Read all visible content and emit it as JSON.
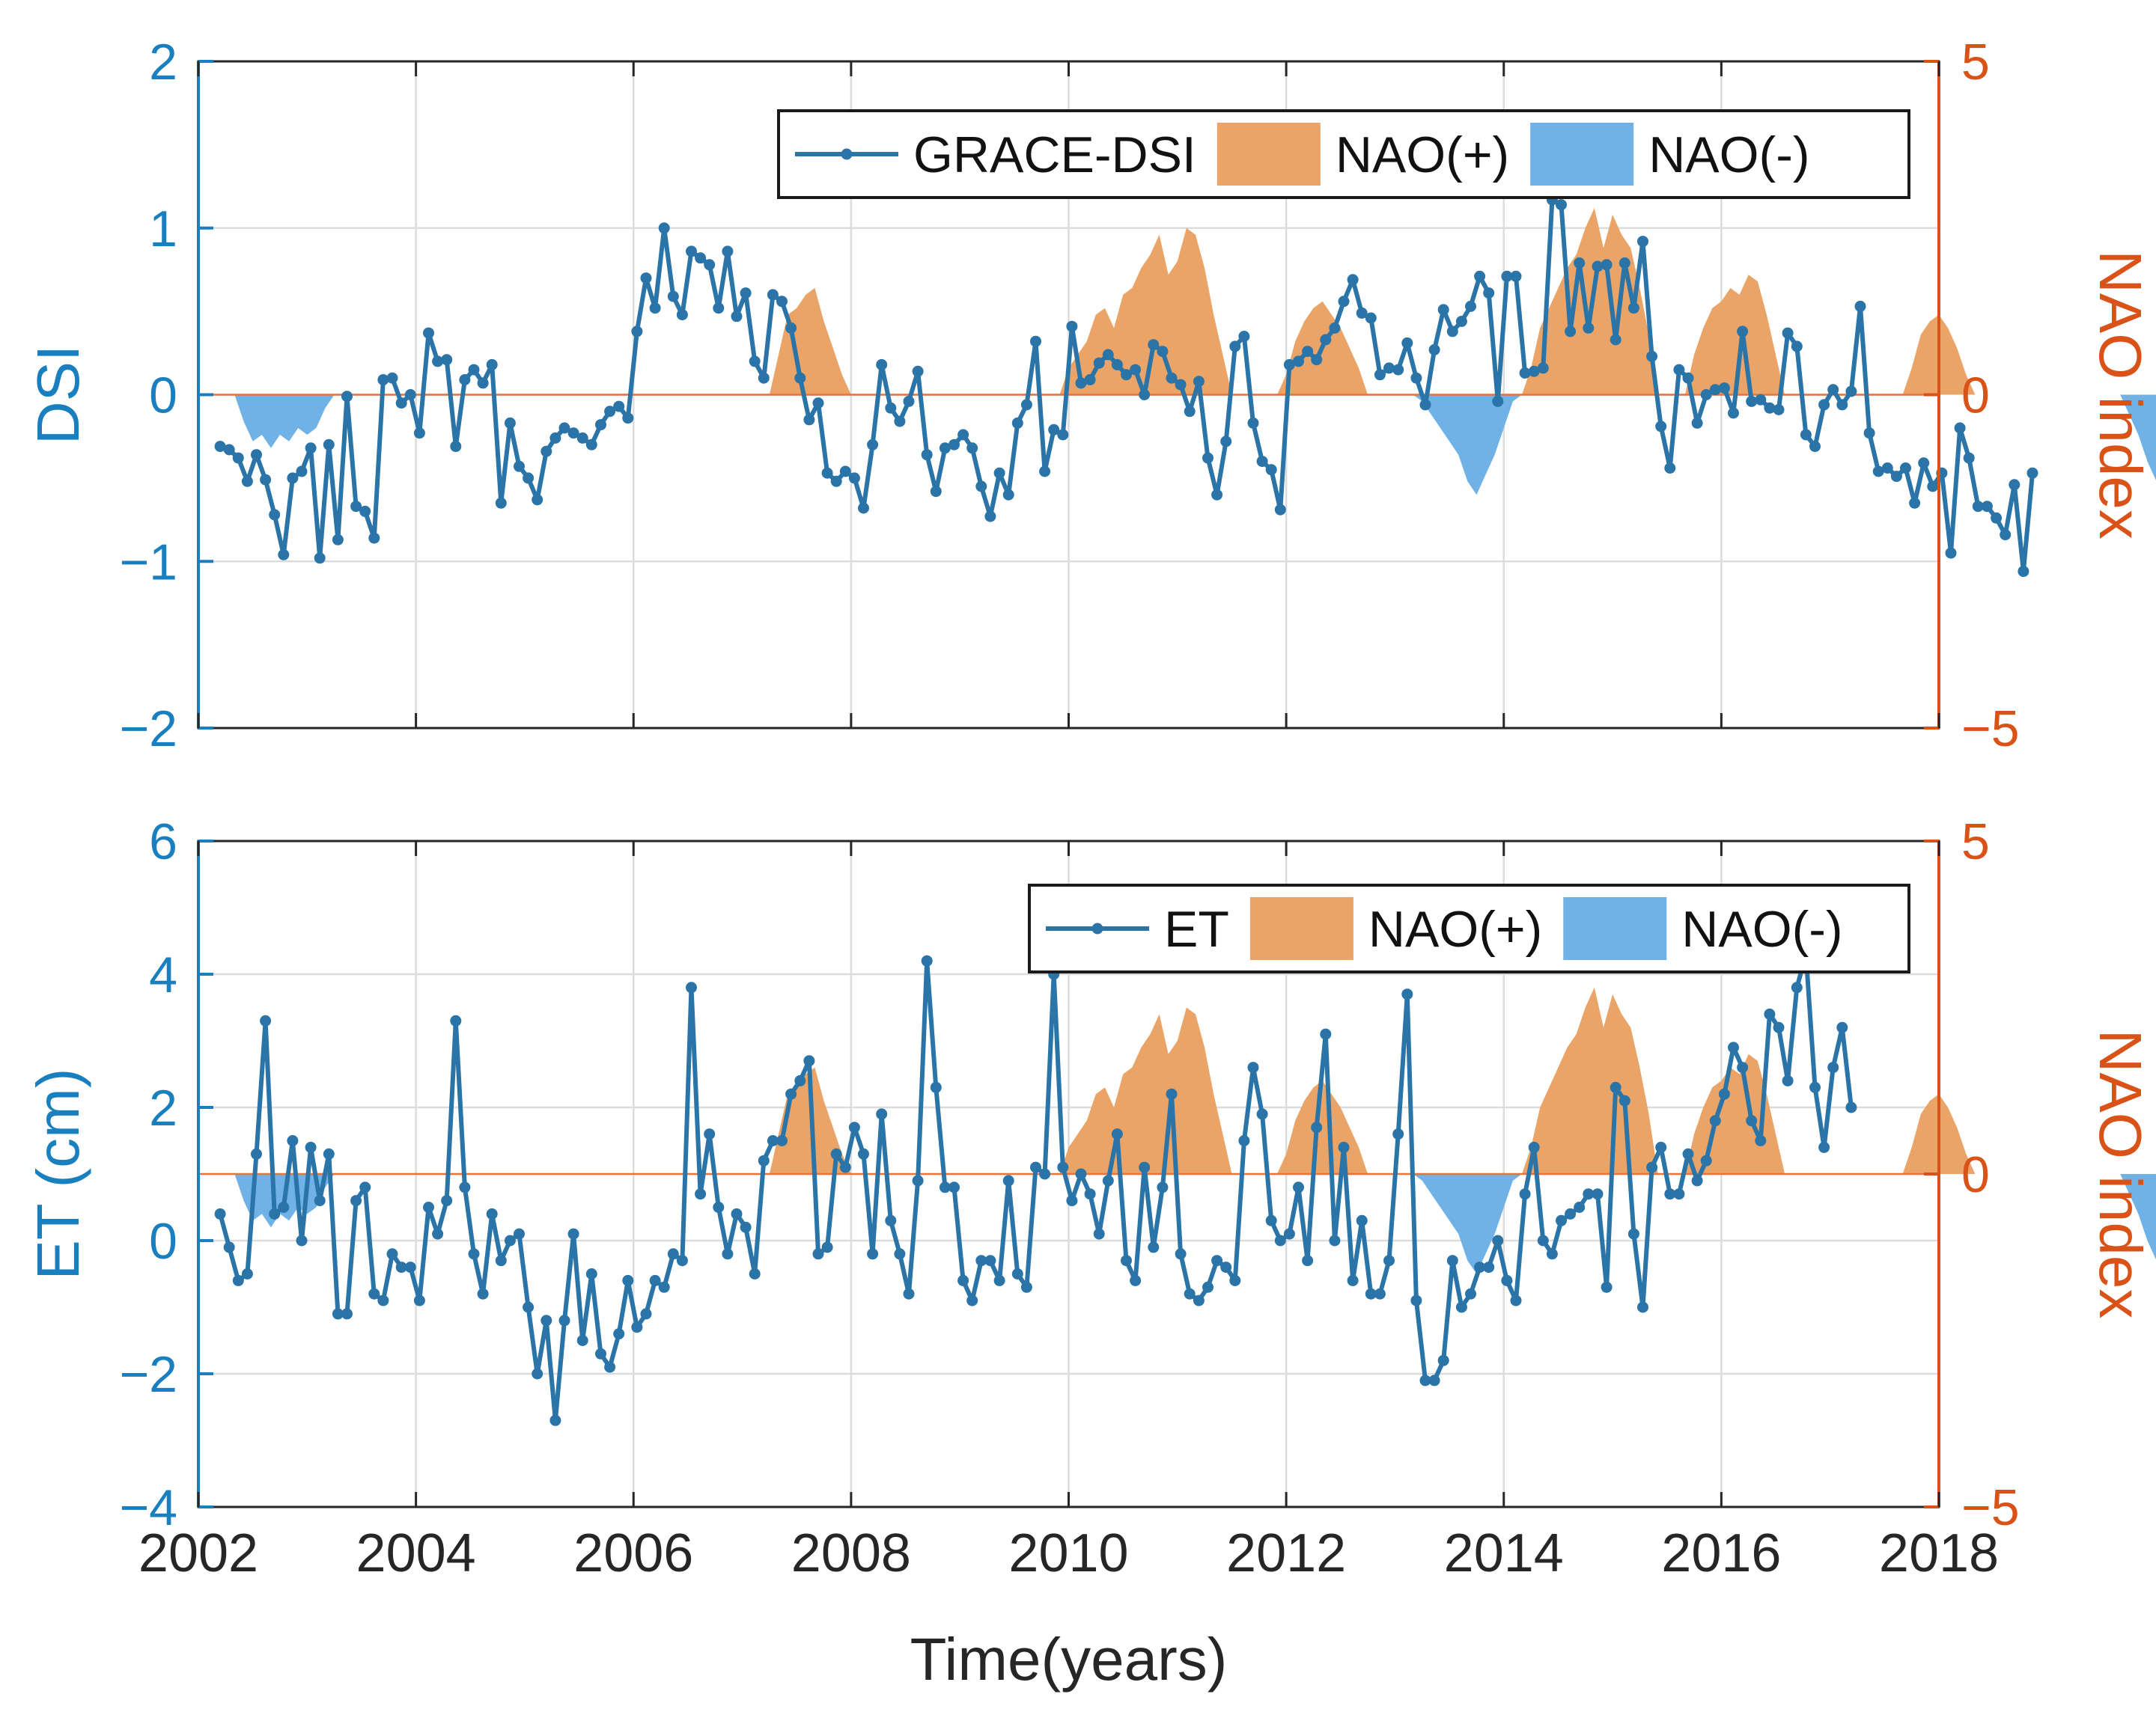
{
  "colors": {
    "series": "#2a74a8",
    "nao_pos": "#eba467",
    "nao_neg": "#70b2e6",
    "left_axis": "#1a7fbf",
    "right_axis": "#d95319",
    "grid": "#dcdcdc",
    "frame": "#262626",
    "zero_line": "#e8733a"
  },
  "x_axis": {
    "label": "Time(years)",
    "range": [
      2002,
      2018
    ],
    "ticks": [
      2002,
      2004,
      2006,
      2008,
      2010,
      2012,
      2014,
      2016,
      2018
    ],
    "tick_labels": [
      "2002",
      "2004",
      "2006",
      "2008",
      "2010",
      "2012",
      "2014",
      "2016",
      "2018"
    ]
  },
  "nao": {
    "months_per_point": 1,
    "start": 2002.25,
    "values": [
      -0.0,
      -0.0,
      -0.4,
      -0.7,
      -0.6,
      -0.8,
      -0.6,
      -0.7,
      -0.5,
      -0.6,
      -0.5,
      -0.2,
      0.0,
      0.0,
      0.0,
      0.0,
      0.0,
      0.0,
      0.0,
      0.0,
      0.0,
      0.0,
      0.0,
      0.0,
      0.0,
      0.0,
      0.0,
      0.0,
      0.0,
      0.0,
      0.0,
      0.0,
      0.0,
      0.0,
      0.0,
      0.0,
      0.0,
      0.0,
      0.0,
      0.0,
      0.0,
      0.0,
      0.0,
      0.0,
      0.0,
      0.0,
      0.0,
      0.0,
      0.0,
      0.0,
      0.0,
      0.0,
      0.0,
      0.0,
      0.0,
      0.0,
      0.0,
      0.0,
      0.0,
      0.0,
      0.0,
      0.6,
      1.2,
      1.3,
      1.5,
      1.6,
      1.1,
      0.7,
      0.3,
      0.0,
      0.0,
      0.0,
      0.0,
      0.0,
      0.0,
      0.0,
      0.0,
      0.0,
      0.0,
      0.0,
      0.0,
      0.0,
      0.0,
      0.0,
      0.0,
      0.0,
      0.0,
      0.0,
      0.0,
      0.0,
      0.0,
      0.0,
      0.0,
      0.4,
      0.6,
      0.8,
      1.2,
      1.3,
      1.0,
      1.5,
      1.6,
      1.9,
      2.1,
      2.4,
      1.8,
      2.0,
      2.5,
      2.4,
      1.9,
      1.2,
      0.6,
      0.0,
      0.0,
      0.0,
      0.0,
      0.0,
      0.0,
      0.3,
      0.8,
      1.1,
      1.3,
      1.4,
      1.2,
      1.0,
      0.7,
      0.4,
      0.0,
      0.0,
      0.0,
      0.0,
      0.0,
      0.0,
      -0.1,
      -0.3,
      -0.5,
      -0.7,
      -0.9,
      -1.3,
      -1.5,
      -1.2,
      -0.9,
      -0.5,
      -0.1,
      0.0,
      0.4,
      1.0,
      1.3,
      1.6,
      1.9,
      2.1,
      2.5,
      2.8,
      2.2,
      2.7,
      2.4,
      2.2,
      1.6,
      0.9,
      0.0,
      0.0,
      0.0,
      0.0,
      0.6,
      1.0,
      1.3,
      1.4,
      1.6,
      1.5,
      1.8,
      1.7,
      1.2,
      0.6,
      0.0,
      0.0,
      0.0,
      0.0,
      0.0,
      0.0,
      0.0,
      0.0,
      0.0,
      0.0,
      0.0,
      0.0,
      0.0,
      0.0,
      0.4,
      0.9,
      1.1,
      1.2,
      1.0,
      0.7,
      0.3,
      0.0,
      0.0,
      0.0,
      0.0,
      0.0,
      0.0,
      0.0,
      0.0,
      0.0,
      0.0,
      0.0,
      0.0,
      0.0,
      0.0,
      0.0,
      0.0,
      0.0,
      -0.3,
      -0.6,
      -1.0,
      -1.3,
      -1.6,
      -1.9,
      -1.9,
      -2.0,
      -2.2,
      -2.3,
      -2.1,
      -2.5,
      -2.8,
      -2.3,
      -2.1,
      -1.5,
      -0.8,
      -0.2,
      0.0,
      0.0
    ]
  },
  "panel_top": {
    "ylabel_left": "DSI",
    "ylabel_right": "NAO index",
    "y_left": {
      "range": [
        -2,
        2
      ],
      "ticks": [
        -2,
        -1,
        0,
        1,
        2
      ],
      "tick_labels": [
        "−2",
        "−1",
        "0",
        "1",
        "2"
      ]
    },
    "y_right": {
      "range": [
        -5,
        5
      ],
      "ticks": [
        -5,
        0,
        5
      ],
      "tick_labels": [
        "−5",
        "0",
        "5"
      ]
    },
    "legend": {
      "series": "GRACE-DSI",
      "pos": "NAO(+)",
      "neg": "NAO(-)"
    }
  },
  "panel_bottom": {
    "ylabel_left": "ET (cm)",
    "ylabel_right": "NAO index",
    "y_left": {
      "range": [
        -4,
        6
      ],
      "ticks": [
        -4,
        -2,
        0,
        2,
        4,
        6
      ],
      "tick_labels": [
        "−4",
        "−2",
        "0",
        "2",
        "4",
        "6"
      ]
    },
    "y_right": {
      "range": [
        -5,
        5
      ],
      "ticks": [
        -5,
        0,
        5
      ],
      "tick_labels": [
        "−5",
        "0",
        "5"
      ]
    },
    "legend": {
      "series": "ET",
      "pos": "NAO(+)",
      "neg": "NAO(-)"
    }
  },
  "chart_data": [
    {
      "type": "line",
      "title": "",
      "xlabel": "Time(years)",
      "ylabel": "DSI",
      "ylabel_right": "NAO index",
      "xlim": [
        2002,
        2018
      ],
      "ylim": [
        -2,
        2
      ],
      "ylim_right": [
        -5,
        5
      ],
      "series": [
        {
          "name": "GRACE-DSI",
          "x_start": 2002.2,
          "x_step": 0.0833,
          "values": [
            -0.31,
            -0.33,
            -0.38,
            -0.52,
            -0.36,
            -0.51,
            -0.72,
            -0.96,
            -0.5,
            -0.46,
            -0.32,
            -0.98,
            -0.3,
            -0.87,
            -0.01,
            -0.67,
            -0.7,
            -0.86,
            0.09,
            0.1,
            -0.05,
            0.0,
            -0.23,
            0.37,
            0.2,
            0.21,
            -0.31,
            0.09,
            0.15,
            0.07,
            0.18,
            -0.65,
            -0.17,
            -0.43,
            -0.5,
            -0.63,
            -0.34,
            -0.26,
            -0.2,
            -0.23,
            -0.26,
            -0.3,
            -0.18,
            -0.1,
            -0.07,
            -0.14,
            0.38,
            0.7,
            0.52,
            1.0,
            0.59,
            0.48,
            0.86,
            0.82,
            0.78,
            0.52,
            0.86,
            0.47,
            0.61,
            0.2,
            0.1,
            0.6,
            0.56,
            0.4,
            0.1,
            -0.15,
            -0.05,
            -0.47,
            -0.52,
            -0.46,
            -0.5,
            -0.68,
            -0.3,
            0.18,
            -0.08,
            -0.16,
            -0.04,
            0.14,
            -0.36,
            -0.58,
            -0.32,
            -0.3,
            -0.24,
            -0.32,
            -0.55,
            -0.73,
            -0.47,
            -0.6,
            -0.17,
            -0.06,
            0.32,
            -0.46,
            -0.21,
            -0.24,
            0.41,
            0.07,
            0.09,
            0.19,
            0.24,
            0.18,
            0.12,
            0.15,
            0.0,
            0.3,
            0.26,
            0.1,
            0.06,
            -0.1,
            0.08,
            -0.38,
            -0.6,
            -0.28,
            0.29,
            0.35,
            -0.17,
            -0.4,
            -0.45,
            -0.69,
            0.18,
            0.2,
            0.26,
            0.21,
            0.33,
            0.4,
            0.56,
            0.69,
            0.49,
            0.46,
            0.12,
            0.16,
            0.15,
            0.31,
            0.1,
            -0.06,
            0.27,
            0.51,
            0.38,
            0.44,
            0.53,
            0.71,
            0.61,
            -0.04,
            0.71,
            0.71,
            0.13,
            0.14,
            0.16,
            1.17,
            1.14,
            0.38,
            0.79,
            0.4,
            0.77,
            0.78,
            0.33,
            0.79,
            0.52,
            0.92,
            0.23,
            -0.19,
            -0.44,
            0.15,
            0.1,
            -0.17,
            0.0,
            0.03,
            0.04,
            -0.11,
            0.38,
            -0.04,
            -0.03,
            -0.08,
            -0.09,
            0.37,
            0.29,
            -0.24,
            -0.31,
            -0.06,
            0.03,
            -0.06,
            0.02,
            0.53,
            -0.23,
            -0.46,
            -0.44,
            -0.49,
            -0.44,
            -0.65,
            -0.41,
            -0.55,
            -0.47,
            -0.95,
            -0.2,
            -0.38,
            -0.67,
            -0.67,
            -0.74,
            -0.84,
            -0.54,
            -1.06,
            -0.47
          ]
        },
        {
          "name": "NAO(+)",
          "axis": "right",
          "values_ref": "nao.values (positive part)"
        },
        {
          "name": "NAO(-)",
          "axis": "right",
          "values_ref": "nao.values (negative part)"
        }
      ]
    },
    {
      "type": "line",
      "title": "",
      "xlabel": "Time(years)",
      "ylabel": "ET (cm)",
      "ylabel_right": "NAO index",
      "xlim": [
        2002,
        2018
      ],
      "ylim": [
        -4,
        6
      ],
      "ylim_right": [
        -5,
        5
      ],
      "series": [
        {
          "name": "ET",
          "x_start": 2002.2,
          "x_step": 0.0833,
          "values": [
            0.4,
            -0.1,
            -0.6,
            -0.5,
            1.3,
            3.3,
            0.4,
            0.5,
            1.5,
            0.0,
            1.4,
            0.6,
            1.3,
            -1.1,
            -1.1,
            0.6,
            0.8,
            -0.8,
            -0.9,
            -0.2,
            -0.4,
            -0.4,
            -0.9,
            0.5,
            0.1,
            0.6,
            3.3,
            0.8,
            -0.2,
            -0.8,
            0.4,
            -0.3,
            0.0,
            0.1,
            -1.0,
            -2.0,
            -1.2,
            -2.7,
            -1.2,
            0.1,
            -1.5,
            -0.5,
            -1.7,
            -1.9,
            -1.4,
            -0.6,
            -1.3,
            -1.1,
            -0.6,
            -0.7,
            -0.2,
            -0.3,
            3.8,
            0.7,
            1.6,
            0.5,
            -0.2,
            0.4,
            0.2,
            -0.5,
            1.2,
            1.5,
            1.5,
            2.2,
            2.4,
            2.7,
            -0.2,
            -0.1,
            1.3,
            1.1,
            1.7,
            1.3,
            -0.2,
            1.9,
            0.3,
            -0.2,
            -0.8,
            0.9,
            4.2,
            2.3,
            0.8,
            0.8,
            -0.6,
            -0.9,
            -0.3,
            -0.3,
            -0.6,
            0.9,
            -0.5,
            -0.7,
            1.1,
            1.0,
            4.0,
            1.1,
            0.6,
            1.0,
            0.7,
            0.1,
            0.9,
            1.6,
            -0.3,
            -0.6,
            1.1,
            -0.1,
            0.8,
            2.2,
            -0.2,
            -0.8,
            -0.9,
            -0.7,
            -0.3,
            -0.4,
            -0.6,
            1.5,
            2.6,
            1.9,
            0.3,
            0.0,
            0.1,
            0.8,
            -0.3,
            1.7,
            3.1,
            0.0,
            1.4,
            -0.6,
            0.3,
            -0.8,
            -0.8,
            -0.3,
            1.6,
            3.7,
            -0.9,
            -2.1,
            -2.1,
            -1.8,
            -0.3,
            -1.0,
            -0.8,
            -0.4,
            -0.4,
            0.0,
            -0.6,
            -0.9,
            0.7,
            1.4,
            0.0,
            -0.2,
            0.3,
            0.4,
            0.5,
            0.7,
            0.7,
            -0.7,
            2.3,
            2.1,
            0.1,
            -1.0,
            1.1,
            1.4,
            0.7,
            0.7,
            1.3,
            0.9,
            1.2,
            1.8,
            2.2,
            2.9,
            2.6,
            1.8,
            1.5,
            3.4,
            3.2,
            2.4,
            3.8,
            4.3,
            2.3,
            1.4,
            2.6,
            3.2,
            2.0
          ]
        },
        {
          "name": "NAO(+)",
          "axis": "right",
          "values_ref": "nao.values (positive part)"
        },
        {
          "name": "NAO(-)",
          "axis": "right",
          "values_ref": "nao.values (negative part)"
        }
      ]
    }
  ]
}
